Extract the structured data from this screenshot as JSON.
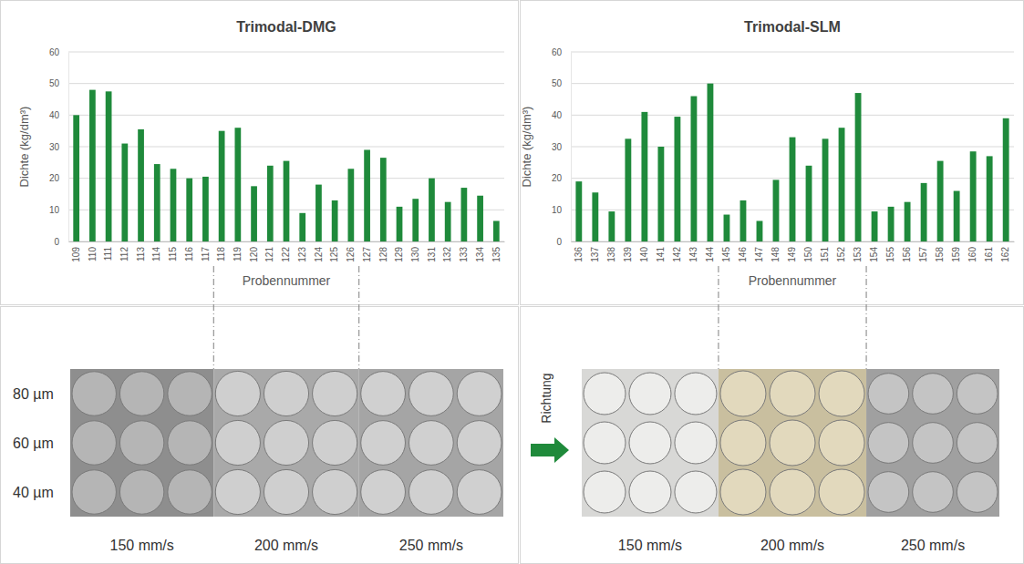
{
  "chart_data": [
    {
      "type": "bar",
      "title": "Trimodal-DMG",
      "x_label": "Probennummer",
      "y_label": "Dichte (kg/dm³)",
      "categories": [
        "109",
        "110",
        "111",
        "112",
        "113",
        "114",
        "115",
        "116",
        "117",
        "118",
        "119",
        "120",
        "121",
        "122",
        "123",
        "124",
        "125",
        "126",
        "127",
        "128",
        "129",
        "130",
        "131",
        "132",
        "133",
        "134",
        "135"
      ],
      "values": [
        40,
        48,
        47.5,
        31,
        35.5,
        24.5,
        23,
        20,
        20.5,
        35,
        36,
        17.5,
        24,
        25.5,
        9,
        18,
        13,
        23,
        29,
        26.5,
        11,
        13.5,
        20,
        12.5,
        17,
        14.5,
        6.5
      ],
      "color": "#1f8a3b",
      "ylim": [
        0,
        60
      ],
      "yticks": [
        0,
        10,
        20,
        30,
        40,
        50,
        60
      ],
      "grid": true
    },
    {
      "type": "bar",
      "title": "Trimodal-SLM",
      "x_label": "Probennummer",
      "y_label": "Dichte (kg/dm³)",
      "categories": [
        "136",
        "137",
        "138",
        "139",
        "140",
        "141",
        "142",
        "143",
        "144",
        "145",
        "146",
        "147",
        "148",
        "149",
        "150",
        "151",
        "152",
        "153",
        "154",
        "155",
        "156",
        "157",
        "158",
        "159",
        "160",
        "161",
        "162"
      ],
      "values": [
        19,
        15.5,
        9.5,
        32.5,
        41,
        30,
        39.5,
        46,
        50,
        8.5,
        13,
        6.5,
        19.5,
        33,
        24,
        32.5,
        36,
        47,
        9.5,
        11,
        12.5,
        18.5,
        25.5,
        16,
        28.5,
        27,
        39
      ],
      "color": "#1f8a3b",
      "ylim": [
        0,
        60
      ],
      "yticks": [
        0,
        10,
        20,
        30,
        40,
        50,
        60
      ],
      "grid": true
    }
  ],
  "photo_panels": [
    {
      "row_labels": [
        "80 µm",
        "60 µm",
        "40 µm"
      ],
      "column_labels": [
        "150 mm/s",
        "200 mm/s",
        "250 mm/s"
      ]
    },
    {
      "direction_label": "Richtung",
      "column_labels": [
        "150 mm/s",
        "200 mm/s",
        "250 mm/s"
      ]
    }
  ]
}
